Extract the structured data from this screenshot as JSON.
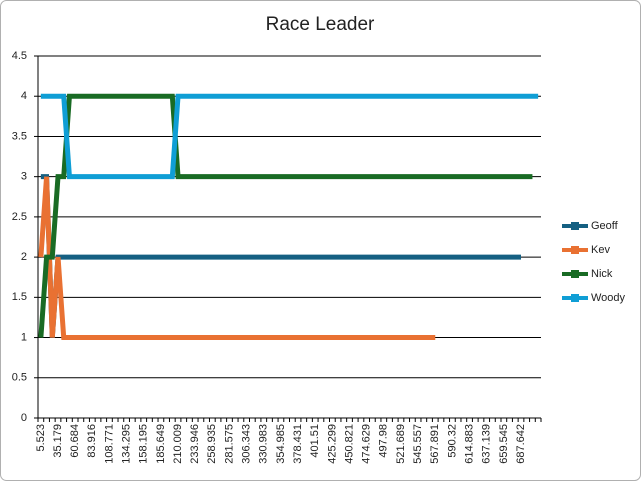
{
  "chart_data": {
    "type": "line",
    "title": "Race Leader",
    "categories": [
      "5.523",
      null,
      null,
      "35.179",
      null,
      null,
      "60.684",
      null,
      null,
      "83.916",
      null,
      null,
      "108.771",
      null,
      null,
      "134.295",
      null,
      null,
      "158.195",
      null,
      null,
      "185.649",
      null,
      null,
      "210.009",
      null,
      null,
      "233.946",
      null,
      null,
      "258.935",
      null,
      null,
      "281.575",
      null,
      null,
      "306.343",
      null,
      null,
      "330.983",
      null,
      null,
      "354.985",
      null,
      null,
      "378.431",
      null,
      null,
      "401.51",
      null,
      null,
      "425.299",
      null,
      null,
      "450.821",
      null,
      null,
      "474.629",
      null,
      null,
      "497.98",
      null,
      null,
      "521.689",
      null,
      null,
      "545.557",
      null,
      null,
      "567.891",
      null,
      null,
      "590.32",
      null,
      null,
      "614.883",
      null,
      null,
      "637.139",
      null,
      null,
      "659.545",
      null,
      null,
      "687.642",
      null,
      null,
      null
    ],
    "series": [
      {
        "name": "Geoff",
        "color": "#156082",
        "values": [
          3,
          3,
          1,
          2,
          2,
          2,
          2,
          2,
          2,
          2,
          2,
          2,
          2,
          2,
          2,
          2,
          2,
          2,
          2,
          2,
          2,
          2,
          2,
          2,
          2,
          2,
          2,
          2,
          2,
          2,
          2,
          2,
          2,
          2,
          2,
          2,
          2,
          2,
          2,
          2,
          2,
          2,
          2,
          2,
          2,
          2,
          2,
          2,
          2,
          2,
          2,
          2,
          2,
          2,
          2,
          2,
          2,
          2,
          2,
          2,
          2,
          2,
          2,
          2,
          2,
          2,
          2,
          2,
          2,
          2,
          2,
          2,
          2,
          2,
          2,
          2,
          2,
          2,
          2,
          2,
          2,
          2,
          2,
          2,
          2,
          null,
          null,
          null
        ]
      },
      {
        "name": "Kev",
        "color": "#e97132",
        "values": [
          2,
          3,
          1,
          2,
          1,
          1,
          1,
          1,
          1,
          1,
          1,
          1,
          1,
          1,
          1,
          1,
          1,
          1,
          1,
          1,
          1,
          1,
          1,
          1,
          1,
          1,
          1,
          1,
          1,
          1,
          1,
          1,
          1,
          1,
          1,
          1,
          1,
          1,
          1,
          1,
          1,
          1,
          1,
          1,
          1,
          1,
          1,
          1,
          1,
          1,
          1,
          1,
          1,
          1,
          1,
          1,
          1,
          1,
          1,
          1,
          1,
          1,
          1,
          1,
          1,
          1,
          1,
          1,
          1,
          1,
          null,
          null,
          null,
          null,
          null,
          null,
          null,
          null,
          null,
          null,
          null,
          null,
          null,
          null,
          null,
          null,
          null,
          null
        ]
      },
      {
        "name": "Nick",
        "color": "#196b24",
        "values": [
          1,
          2,
          2,
          3,
          3,
          4,
          4,
          4,
          4,
          4,
          4,
          4,
          4,
          4,
          4,
          4,
          4,
          4,
          4,
          4,
          4,
          4,
          4,
          4,
          3,
          3,
          3,
          3,
          3,
          3,
          3,
          3,
          3,
          3,
          3,
          3,
          3,
          3,
          3,
          3,
          3,
          3,
          3,
          3,
          3,
          3,
          3,
          3,
          3,
          3,
          3,
          3,
          3,
          3,
          3,
          3,
          3,
          3,
          3,
          3,
          3,
          3,
          3,
          3,
          3,
          3,
          3,
          3,
          3,
          3,
          3,
          3,
          3,
          3,
          3,
          3,
          3,
          3,
          3,
          3,
          3,
          3,
          3,
          3,
          3,
          3,
          3,
          null
        ]
      },
      {
        "name": "Woody",
        "color": "#0f9ed5",
        "values": [
          4,
          4,
          4,
          4,
          4,
          3,
          3,
          3,
          3,
          3,
          3,
          3,
          3,
          3,
          3,
          3,
          3,
          3,
          3,
          3,
          3,
          3,
          3,
          3,
          4,
          4,
          4,
          4,
          4,
          4,
          4,
          4,
          4,
          4,
          4,
          4,
          4,
          4,
          4,
          4,
          4,
          4,
          4,
          4,
          4,
          4,
          4,
          4,
          4,
          4,
          4,
          4,
          4,
          4,
          4,
          4,
          4,
          4,
          4,
          4,
          4,
          4,
          4,
          4,
          4,
          4,
          4,
          4,
          4,
          4,
          4,
          4,
          4,
          4,
          4,
          4,
          4,
          4,
          4,
          4,
          4,
          4,
          4,
          4,
          4,
          4,
          4,
          4
        ]
      }
    ],
    "ylim": [
      0,
      4.5
    ],
    "yticks": [
      0,
      0.5,
      1,
      1.5,
      2,
      2.5,
      3,
      3.5,
      4,
      4.5
    ],
    "grid": true,
    "legend": "right"
  }
}
